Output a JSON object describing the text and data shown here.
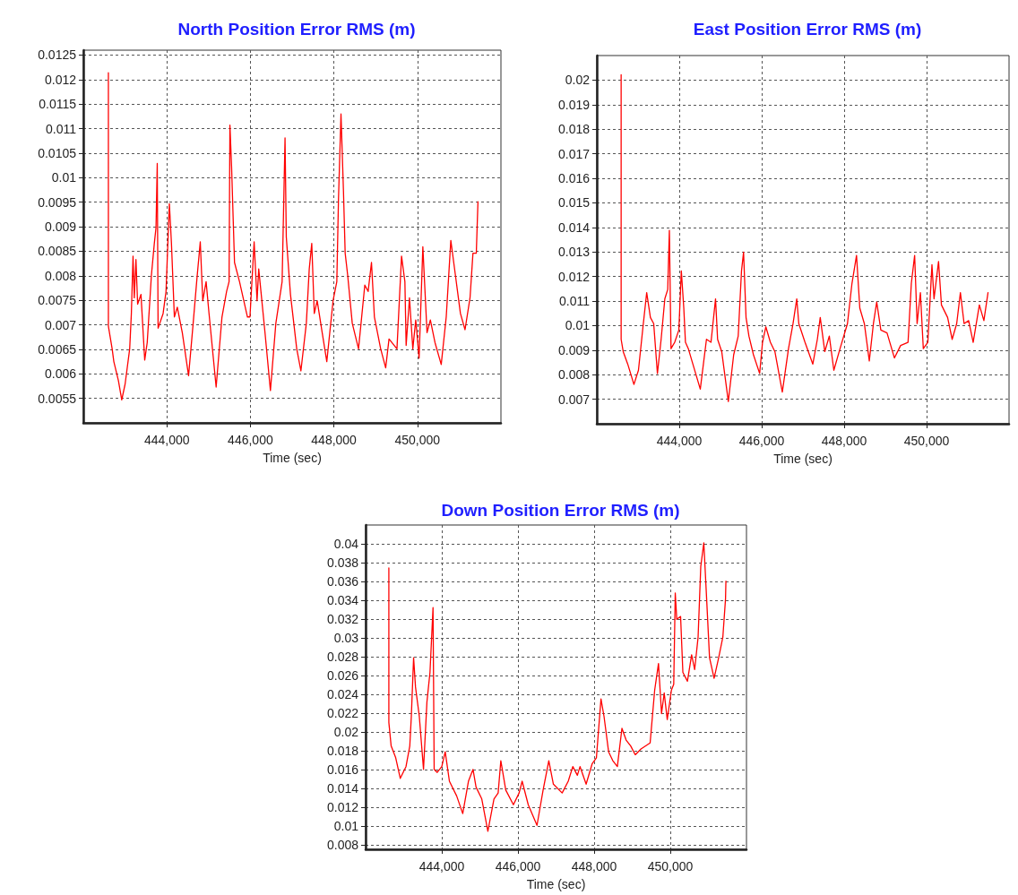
{
  "chart_data": [
    {
      "type": "line",
      "title": "North Position Error RMS (m)",
      "xlabel": "Time (sec)",
      "xlim": [
        442000,
        452000
      ],
      "ylim": [
        0.005,
        0.0126
      ],
      "xticks": [
        {
          "value": 444000,
          "label": "444,000"
        },
        {
          "value": 446000,
          "label": "446,000"
        },
        {
          "value": 448000,
          "label": "448,000"
        },
        {
          "value": 450000,
          "label": "450,000"
        }
      ],
      "yticks": [
        0.0055,
        0.006,
        0.0065,
        0.007,
        0.0075,
        0.008,
        0.0085,
        0.009,
        0.0095,
        0.01,
        0.0105,
        0.011,
        0.0115,
        0.012,
        0.0125
      ],
      "grid": true,
      "marker": "none",
      "line_style": "solid",
      "x": [
        442600,
        442600,
        442690,
        442730,
        442840,
        442920,
        443000,
        443110,
        443150,
        443190,
        443220,
        443260,
        443300,
        443380,
        443470,
        443530,
        443630,
        443700,
        443740,
        443770,
        443790,
        443910,
        443980,
        444060,
        444110,
        444180,
        444250,
        444370,
        444520,
        444630,
        444720,
        444800,
        444860,
        444940,
        445010,
        445180,
        445320,
        445430,
        445490,
        445510,
        445550,
        445620,
        445740,
        445930,
        445990,
        446090,
        446160,
        446200,
        446350,
        446480,
        446610,
        446760,
        446830,
        446860,
        446960,
        447110,
        447210,
        447340,
        447410,
        447470,
        447530,
        447600,
        447720,
        447830,
        447980,
        448070,
        448110,
        448170,
        448230,
        448270,
        448330,
        448440,
        448590,
        448740,
        448820,
        448900,
        448970,
        449120,
        449240,
        449320,
        449510,
        449620,
        449700,
        449730,
        449810,
        449890,
        449960,
        450040,
        450130,
        450230,
        450310,
        450420,
        450570,
        450690,
        450800,
        450910,
        451030,
        451140,
        451260,
        451330,
        451410,
        451450
      ],
      "series": [
        {
          "color": "#ff0000",
          "values": [
            0.01214,
            0.00697,
            0.00651,
            0.00625,
            0.00586,
            0.00547,
            0.00579,
            0.00651,
            0.00723,
            0.0084,
            0.00755,
            0.00833,
            0.00742,
            0.00762,
            0.00628,
            0.00664,
            0.00801,
            0.00866,
            0.00898,
            0.01029,
            0.00693,
            0.00723,
            0.00768,
            0.00947,
            0.00866,
            0.00716,
            0.00736,
            0.00684,
            0.00596,
            0.00703,
            0.00794,
            0.00869,
            0.00749,
            0.00788,
            0.00723,
            0.00573,
            0.00716,
            0.00768,
            0.00788,
            0.01107,
            0.01022,
            0.00827,
            0.00788,
            0.00716,
            0.00716,
            0.00869,
            0.00749,
            0.00814,
            0.00684,
            0.00566,
            0.00703,
            0.00788,
            0.01081,
            0.00879,
            0.00762,
            0.00651,
            0.00606,
            0.00703,
            0.00814,
            0.00866,
            0.00723,
            0.00749,
            0.00684,
            0.00625,
            0.00749,
            0.00788,
            0.00957,
            0.0113,
            0.0097,
            0.00846,
            0.00801,
            0.00703,
            0.00651,
            0.00781,
            0.00768,
            0.00827,
            0.00716,
            0.00651,
            0.00612,
            0.00671,
            0.00651,
            0.0084,
            0.00788,
            0.00658,
            0.00755,
            0.00651,
            0.0071,
            0.00632,
            0.00859,
            0.00684,
            0.0071,
            0.00664,
            0.00619,
            0.00716,
            0.00872,
            0.00801,
            0.00723,
            0.0069,
            0.00755,
            0.00846,
            0.00846,
            0.00951
          ]
        }
      ]
    },
    {
      "type": "line",
      "title": "East Position Error RMS (m)",
      "xlabel": "Time (sec)",
      "xlim": [
        442000,
        452000
      ],
      "ylim": [
        0.006,
        0.021
      ],
      "xticks": [
        {
          "value": 444000,
          "label": "444,000"
        },
        {
          "value": 446000,
          "label": "446,000"
        },
        {
          "value": 448000,
          "label": "448,000"
        },
        {
          "value": 450000,
          "label": "450,000"
        }
      ],
      "yticks": [
        0.007,
        0.008,
        0.009,
        0.01,
        0.011,
        0.012,
        0.013,
        0.014,
        0.015,
        0.016,
        0.017,
        0.018,
        0.019,
        0.02
      ],
      "grid": true,
      "marker": "none",
      "line_style": "solid",
      "x": [
        442590,
        442590,
        442640,
        442750,
        442900,
        443010,
        443120,
        443210,
        443300,
        443380,
        443470,
        443560,
        443650,
        443720,
        443760,
        443800,
        443890,
        443990,
        444050,
        444110,
        444150,
        444220,
        444330,
        444510,
        444660,
        444770,
        444880,
        444930,
        445030,
        445190,
        445320,
        445430,
        445510,
        445560,
        445620,
        445690,
        445800,
        445950,
        446020,
        446100,
        446210,
        446320,
        446500,
        446650,
        446760,
        446850,
        446900,
        447050,
        447240,
        447350,
        447420,
        447530,
        447640,
        447750,
        447900,
        448080,
        448190,
        448300,
        448380,
        448490,
        448610,
        448710,
        448790,
        448890,
        449040,
        449220,
        449370,
        449550,
        449630,
        449710,
        449770,
        449850,
        449920,
        450030,
        450130,
        450180,
        450290,
        450360,
        450510,
        450620,
        450730,
        450820,
        450910,
        451020,
        451130,
        451280,
        451390,
        451490
      ],
      "series": [
        {
          "color": "#ff0000",
          "values": [
            0.02022,
            0.00944,
            0.00894,
            0.00843,
            0.0076,
            0.00818,
            0.00995,
            0.01134,
            0.01033,
            0.01008,
            0.00805,
            0.00944,
            0.01109,
            0.01147,
            0.01388,
            0.00906,
            0.00932,
            0.00982,
            0.01223,
            0.01071,
            0.00932,
            0.00906,
            0.00843,
            0.00741,
            0.00944,
            0.00932,
            0.01109,
            0.00944,
            0.00894,
            0.00691,
            0.00881,
            0.00957,
            0.01223,
            0.01299,
            0.01033,
            0.00957,
            0.00881,
            0.00805,
            0.00932,
            0.00995,
            0.00932,
            0.00894,
            0.00729,
            0.00906,
            0.01008,
            0.01109,
            0.01008,
            0.00932,
            0.00843,
            0.00944,
            0.01033,
            0.00894,
            0.00957,
            0.00818,
            0.00906,
            0.01008,
            0.01172,
            0.01286,
            0.01071,
            0.01008,
            0.00856,
            0.01008,
            0.01096,
            0.00982,
            0.0097,
            0.00868,
            0.00919,
            0.00932,
            0.01172,
            0.01286,
            0.01008,
            0.01134,
            0.00906,
            0.00932,
            0.01248,
            0.01109,
            0.01261,
            0.01084,
            0.01033,
            0.00944,
            0.01008,
            0.01134,
            0.01008,
            0.0102,
            0.00932,
            0.01084,
            0.0102,
            0.01134
          ]
        }
      ]
    },
    {
      "type": "line",
      "title": "Down Position Error RMS (m)",
      "xlabel": "Time (sec)",
      "xlim": [
        442000,
        452000
      ],
      "ylim": [
        0.0075,
        0.042
      ],
      "xticks": [
        {
          "value": 444000,
          "label": "444,000"
        },
        {
          "value": 446000,
          "label": "446,000"
        },
        {
          "value": 448000,
          "label": "448,000"
        },
        {
          "value": 450000,
          "label": "450,000"
        }
      ],
      "yticks": [
        0.008,
        0.01,
        0.012,
        0.014,
        0.016,
        0.018,
        0.02,
        0.022,
        0.024,
        0.026,
        0.028,
        0.03,
        0.032,
        0.034,
        0.036,
        0.038,
        0.04
      ],
      "grid": true,
      "marker": "none",
      "line_style": "solid",
      "x": [
        442610,
        442610,
        442670,
        442790,
        442910,
        443060,
        443160,
        443200,
        443260,
        443310,
        443410,
        443520,
        443610,
        443690,
        443770,
        443800,
        443880,
        444000,
        444090,
        444200,
        444390,
        444550,
        444700,
        444820,
        444900,
        445050,
        445210,
        445370,
        445480,
        445550,
        445680,
        445880,
        446030,
        446110,
        446270,
        446500,
        446660,
        446810,
        446930,
        447160,
        447320,
        447440,
        447560,
        447630,
        447790,
        447950,
        448060,
        448180,
        448260,
        448380,
        448490,
        448610,
        448730,
        448840,
        448960,
        449080,
        449230,
        449470,
        449590,
        449690,
        449770,
        449840,
        449920,
        450030,
        450090,
        450130,
        450170,
        450270,
        450330,
        450450,
        450560,
        450640,
        450730,
        450800,
        450880,
        450950,
        451030,
        451150,
        451270,
        451380,
        451450,
        451460
      ],
      "series": [
        {
          "color": "#ff0000",
          "values": [
            0.03743,
            0.021,
            0.0185,
            0.01724,
            0.01505,
            0.0163,
            0.0185,
            0.02163,
            0.02789,
            0.02476,
            0.02163,
            0.016,
            0.02319,
            0.02632,
            0.03321,
            0.016,
            0.01568,
            0.0163,
            0.01787,
            0.01474,
            0.01318,
            0.0113,
            0.01474,
            0.016,
            0.01411,
            0.01286,
            0.00942,
            0.01286,
            0.01349,
            0.01693,
            0.0138,
            0.01224,
            0.01349,
            0.01474,
            0.01224,
            0.01005,
            0.0138,
            0.01693,
            0.01443,
            0.01349,
            0.01474,
            0.0163,
            0.01537,
            0.0163,
            0.01443,
            0.01662,
            0.01724,
            0.0235,
            0.02163,
            0.01787,
            0.01693,
            0.0163,
            0.02037,
            0.01912,
            0.0185,
            0.01756,
            0.01818,
            0.01881,
            0.02444,
            0.02726,
            0.02194,
            0.02413,
            0.02131,
            0.02444,
            0.02507,
            0.03477,
            0.03196,
            0.03227,
            0.02632,
            0.02538,
            0.0282,
            0.02663,
            0.03008,
            0.03759,
            0.0401,
            0.03446,
            0.02789,
            0.0257,
            0.02789,
            0.03008,
            0.03415,
            0.03602
          ]
        }
      ]
    }
  ]
}
